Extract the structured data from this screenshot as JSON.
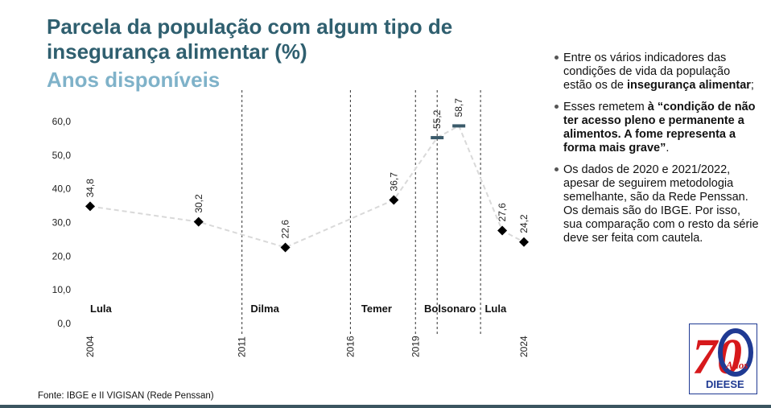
{
  "header": {
    "title": "Parcela da população com algum tipo de insegurança alimentar (%)",
    "subtitle": "Anos disponíveis"
  },
  "chart_data": {
    "type": "line",
    "title": "Parcela da população com algum tipo de insegurança alimentar (%)",
    "y_ticks": [
      "0,0",
      "10,0",
      "20,0",
      "30,0",
      "40,0",
      "50,0",
      "60,0"
    ],
    "ylim": [
      0,
      60
    ],
    "grid": false,
    "x_tick_labels": [
      "2004",
      "2011",
      "2016",
      "2019",
      "2024"
    ],
    "x_range": [
      2004,
      2024
    ],
    "points": [
      {
        "x": 2004,
        "y": 34.8,
        "label": "34,8",
        "marker": "diamond"
      },
      {
        "x": 2009,
        "y": 30.2,
        "label": "30,2",
        "marker": "diamond"
      },
      {
        "x": 2013,
        "y": 22.6,
        "label": "22,6",
        "marker": "diamond"
      },
      {
        "x": 2018,
        "y": 36.7,
        "label": "36,7",
        "marker": "diamond"
      },
      {
        "x": 2020,
        "y": 55.2,
        "label": "55,2",
        "marker": "dash"
      },
      {
        "x": 2021,
        "y": 58.7,
        "label": "58,7",
        "marker": "dash"
      },
      {
        "x": 2023,
        "y": 27.6,
        "label": "27,6",
        "marker": "diamond"
      },
      {
        "x": 2024,
        "y": 24.2,
        "label": "24,2",
        "marker": "diamond"
      }
    ],
    "divider_years": [
      2011,
      2016,
      2019,
      2020,
      2022
    ],
    "periods": [
      {
        "name": "Lula",
        "x": 2004
      },
      {
        "name": "Dilma",
        "x": 2011.4
      },
      {
        "name": "Temer",
        "x": 2016.5
      },
      {
        "name": "Bolsonaro",
        "x": 2019.4
      },
      {
        "name": "Lula",
        "x": 2022.2
      }
    ]
  },
  "bullets": [
    [
      {
        "t": "Entre os vários indicadores das condições de vida da população estão os de "
      },
      {
        "t": "insegurança alimentar",
        "b": true
      },
      {
        "t": ";"
      }
    ],
    [
      {
        "t": "Esses remetem "
      },
      {
        "t": "à “condição de não ter acesso pleno e permanente a alimentos. A fome representa a forma mais grave”",
        "b": true
      },
      {
        "t": "."
      }
    ],
    [
      {
        "t": "Os dados de 2020 e 2021/2022, apesar de seguirem metodologia semelhante, são da Rede Penssan. Os demais são do IBGE. Por isso, sua comparação com o resto da série deve ser feita com cautela."
      }
    ]
  ],
  "footer": "Fonte: IBGE e II VIGISAN (Rede Penssan)",
  "logo": {
    "number": "70",
    "word": "Anos",
    "brand": "DIEESE"
  },
  "colors": {
    "title": "#2f5f6f",
    "subtitle": "#7fb2c9",
    "line": "#d9d9d9",
    "marker": "#000000",
    "dash_marker": "#3a5a6a",
    "logo_red": "#d7191c",
    "logo_blue": "#1f3a93"
  }
}
